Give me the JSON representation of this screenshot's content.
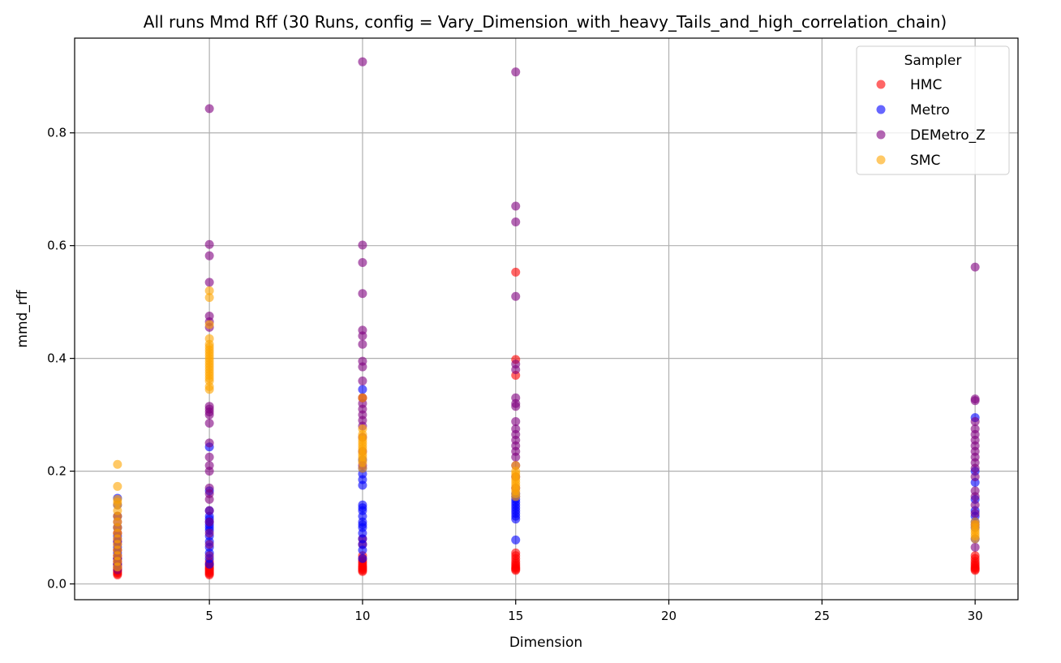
{
  "chart_data": {
    "type": "scatter",
    "title": "All runs Mmd Rff (30 Runs, config = Vary_Dimension_with_heavy_Tails_and_high_correlation_chain)",
    "xlabel": "Dimension",
    "ylabel": "mmd_rff",
    "xlim": [
      0.6,
      31.4
    ],
    "ylim": [
      -0.028,
      0.968
    ],
    "xticks": [
      5,
      10,
      15,
      20,
      25,
      30
    ],
    "yticks": [
      0.0,
      0.2,
      0.4,
      0.6,
      0.8
    ],
    "xtick_labels": [
      "5",
      "10",
      "15",
      "20",
      "25",
      "30"
    ],
    "ytick_labels": [
      "0.0",
      "0.2",
      "0.4",
      "0.6",
      "0.8"
    ],
    "grid": true,
    "legend": {
      "title": "Sampler",
      "position": "top-right"
    },
    "marker_alpha": 0.6,
    "series": [
      {
        "name": "HMC",
        "color": "#ff0000",
        "points": [
          [
            2,
            0.016
          ],
          [
            2,
            0.018
          ],
          [
            2,
            0.02
          ],
          [
            2,
            0.022
          ],
          [
            2,
            0.024
          ],
          [
            2,
            0.026
          ],
          [
            2,
            0.028
          ],
          [
            2,
            0.03
          ],
          [
            2,
            0.033
          ],
          [
            2,
            0.036
          ],
          [
            2,
            0.04
          ],
          [
            2,
            0.045
          ],
          [
            2,
            0.05
          ],
          [
            2,
            0.06
          ],
          [
            2,
            0.075
          ],
          [
            2,
            0.09
          ],
          [
            5,
            0.016
          ],
          [
            5,
            0.018
          ],
          [
            5,
            0.02
          ],
          [
            5,
            0.022
          ],
          [
            5,
            0.024
          ],
          [
            5,
            0.026
          ],
          [
            5,
            0.028
          ],
          [
            5,
            0.03
          ],
          [
            5,
            0.033
          ],
          [
            5,
            0.036
          ],
          [
            5,
            0.04
          ],
          [
            10,
            0.022
          ],
          [
            10,
            0.024
          ],
          [
            10,
            0.026
          ],
          [
            10,
            0.028
          ],
          [
            10,
            0.03
          ],
          [
            10,
            0.032
          ],
          [
            10,
            0.035
          ],
          [
            10,
            0.038
          ],
          [
            10,
            0.041
          ],
          [
            10,
            0.045
          ],
          [
            10,
            0.05
          ],
          [
            10,
            0.07
          ],
          [
            10,
            0.08
          ],
          [
            10,
            0.33
          ],
          [
            15,
            0.024
          ],
          [
            15,
            0.026
          ],
          [
            15,
            0.028
          ],
          [
            15,
            0.03
          ],
          [
            15,
            0.033
          ],
          [
            15,
            0.036
          ],
          [
            15,
            0.04
          ],
          [
            15,
            0.045
          ],
          [
            15,
            0.05
          ],
          [
            15,
            0.055
          ],
          [
            15,
            0.37
          ],
          [
            15,
            0.398
          ],
          [
            15,
            0.553
          ],
          [
            30,
            0.024
          ],
          [
            30,
            0.026
          ],
          [
            30,
            0.028
          ],
          [
            30,
            0.03
          ],
          [
            30,
            0.033
          ],
          [
            30,
            0.036
          ],
          [
            30,
            0.04
          ],
          [
            30,
            0.045
          ],
          [
            30,
            0.05
          ]
        ]
      },
      {
        "name": "Metro",
        "color": "#0000ff",
        "points": [
          [
            2,
            0.035
          ],
          [
            2,
            0.045
          ],
          [
            2,
            0.055
          ],
          [
            2,
            0.065
          ],
          [
            2,
            0.075
          ],
          [
            2,
            0.085
          ],
          [
            2,
            0.1
          ],
          [
            2,
            0.12
          ],
          [
            2,
            0.14
          ],
          [
            2,
            0.152
          ],
          [
            5,
            0.035
          ],
          [
            5,
            0.045
          ],
          [
            5,
            0.055
          ],
          [
            5,
            0.065
          ],
          [
            5,
            0.075
          ],
          [
            5,
            0.085
          ],
          [
            5,
            0.095
          ],
          [
            5,
            0.1
          ],
          [
            5,
            0.105
          ],
          [
            5,
            0.11
          ],
          [
            5,
            0.115
          ],
          [
            5,
            0.12
          ],
          [
            5,
            0.13
          ],
          [
            5,
            0.165
          ],
          [
            5,
            0.243
          ],
          [
            10,
            0.045
          ],
          [
            10,
            0.06
          ],
          [
            10,
            0.07
          ],
          [
            10,
            0.08
          ],
          [
            10,
            0.09
          ],
          [
            10,
            0.1
          ],
          [
            10,
            0.105
          ],
          [
            10,
            0.11
          ],
          [
            10,
            0.12
          ],
          [
            10,
            0.13
          ],
          [
            10,
            0.135
          ],
          [
            10,
            0.14
          ],
          [
            10,
            0.175
          ],
          [
            10,
            0.185
          ],
          [
            10,
            0.195
          ],
          [
            10,
            0.205
          ],
          [
            10,
            0.22
          ],
          [
            10,
            0.345
          ],
          [
            15,
            0.078
          ],
          [
            15,
            0.115
          ],
          [
            15,
            0.12
          ],
          [
            15,
            0.125
          ],
          [
            15,
            0.13
          ],
          [
            15,
            0.135
          ],
          [
            15,
            0.14
          ],
          [
            15,
            0.145
          ],
          [
            15,
            0.15
          ],
          [
            15,
            0.155
          ],
          [
            15,
            0.16
          ],
          [
            30,
            0.08
          ],
          [
            30,
            0.1
          ],
          [
            30,
            0.11
          ],
          [
            30,
            0.12
          ],
          [
            30,
            0.13
          ],
          [
            30,
            0.15
          ],
          [
            30,
            0.18
          ],
          [
            30,
            0.2
          ],
          [
            30,
            0.295
          ]
        ]
      },
      {
        "name": "DEMetro_Z",
        "color": "#800080",
        "points": [
          [
            2,
            0.025
          ],
          [
            2,
            0.03
          ],
          [
            2,
            0.035
          ],
          [
            2,
            0.04
          ],
          [
            2,
            0.045
          ],
          [
            2,
            0.05
          ],
          [
            2,
            0.06
          ],
          [
            2,
            0.07
          ],
          [
            2,
            0.08
          ],
          [
            2,
            0.09
          ],
          [
            2,
            0.1
          ],
          [
            2,
            0.11
          ],
          [
            2,
            0.12
          ],
          [
            5,
            0.05
          ],
          [
            5,
            0.07
          ],
          [
            5,
            0.09
          ],
          [
            5,
            0.11
          ],
          [
            5,
            0.13
          ],
          [
            5,
            0.15
          ],
          [
            5,
            0.16
          ],
          [
            5,
            0.17
          ],
          [
            5,
            0.2
          ],
          [
            5,
            0.21
          ],
          [
            5,
            0.225
          ],
          [
            5,
            0.25
          ],
          [
            5,
            0.285
          ],
          [
            5,
            0.3
          ],
          [
            5,
            0.305
          ],
          [
            5,
            0.31
          ],
          [
            5,
            0.315
          ],
          [
            5,
            0.455
          ],
          [
            5,
            0.465
          ],
          [
            5,
            0.475
          ],
          [
            5,
            0.535
          ],
          [
            5,
            0.582
          ],
          [
            5,
            0.602
          ],
          [
            5,
            0.843
          ],
          [
            10,
            0.21
          ],
          [
            10,
            0.235
          ],
          [
            10,
            0.26
          ],
          [
            10,
            0.28
          ],
          [
            10,
            0.29
          ],
          [
            10,
            0.3
          ],
          [
            10,
            0.31
          ],
          [
            10,
            0.32
          ],
          [
            10,
            0.33
          ],
          [
            10,
            0.36
          ],
          [
            10,
            0.385
          ],
          [
            10,
            0.395
          ],
          [
            10,
            0.425
          ],
          [
            10,
            0.44
          ],
          [
            10,
            0.45
          ],
          [
            10,
            0.515
          ],
          [
            10,
            0.57
          ],
          [
            10,
            0.601
          ],
          [
            10,
            0.926
          ],
          [
            15,
            0.17
          ],
          [
            15,
            0.19
          ],
          [
            15,
            0.21
          ],
          [
            15,
            0.225
          ],
          [
            15,
            0.235
          ],
          [
            15,
            0.245
          ],
          [
            15,
            0.255
          ],
          [
            15,
            0.265
          ],
          [
            15,
            0.275
          ],
          [
            15,
            0.288
          ],
          [
            15,
            0.315
          ],
          [
            15,
            0.32
          ],
          [
            15,
            0.33
          ],
          [
            15,
            0.38
          ],
          [
            15,
            0.39
          ],
          [
            15,
            0.51
          ],
          [
            15,
            0.642
          ],
          [
            15,
            0.67
          ],
          [
            15,
            0.908
          ],
          [
            30,
            0.065
          ],
          [
            30,
            0.105
          ],
          [
            30,
            0.125
          ],
          [
            30,
            0.14
          ],
          [
            30,
            0.155
          ],
          [
            30,
            0.165
          ],
          [
            30,
            0.19
          ],
          [
            30,
            0.205
          ],
          [
            30,
            0.215
          ],
          [
            30,
            0.225
          ],
          [
            30,
            0.235
          ],
          [
            30,
            0.245
          ],
          [
            30,
            0.255
          ],
          [
            30,
            0.265
          ],
          [
            30,
            0.275
          ],
          [
            30,
            0.288
          ],
          [
            30,
            0.325
          ],
          [
            30,
            0.328
          ],
          [
            30,
            0.562
          ]
        ]
      },
      {
        "name": "SMC",
        "color": "#ffa500",
        "points": [
          [
            2,
            0.03
          ],
          [
            2,
            0.04
          ],
          [
            2,
            0.05
          ],
          [
            2,
            0.06
          ],
          [
            2,
            0.07
          ],
          [
            2,
            0.08
          ],
          [
            2,
            0.09
          ],
          [
            2,
            0.1
          ],
          [
            2,
            0.11
          ],
          [
            2,
            0.12
          ],
          [
            2,
            0.13
          ],
          [
            2,
            0.14
          ],
          [
            2,
            0.145
          ],
          [
            2,
            0.15
          ],
          [
            2,
            0.173
          ],
          [
            2,
            0.212
          ],
          [
            5,
            0.345
          ],
          [
            5,
            0.35
          ],
          [
            5,
            0.36
          ],
          [
            5,
            0.365
          ],
          [
            5,
            0.37
          ],
          [
            5,
            0.375
          ],
          [
            5,
            0.38
          ],
          [
            5,
            0.385
          ],
          [
            5,
            0.39
          ],
          [
            5,
            0.395
          ],
          [
            5,
            0.4
          ],
          [
            5,
            0.405
          ],
          [
            5,
            0.41
          ],
          [
            5,
            0.415
          ],
          [
            5,
            0.42
          ],
          [
            5,
            0.425
          ],
          [
            5,
            0.435
          ],
          [
            5,
            0.46
          ],
          [
            5,
            0.508
          ],
          [
            5,
            0.52
          ],
          [
            10,
            0.205
          ],
          [
            10,
            0.215
          ],
          [
            10,
            0.22
          ],
          [
            10,
            0.225
          ],
          [
            10,
            0.23
          ],
          [
            10,
            0.235
          ],
          [
            10,
            0.24
          ],
          [
            10,
            0.245
          ],
          [
            10,
            0.25
          ],
          [
            10,
            0.255
          ],
          [
            10,
            0.26
          ],
          [
            10,
            0.265
          ],
          [
            10,
            0.275
          ],
          [
            10,
            0.33
          ],
          [
            15,
            0.155
          ],
          [
            15,
            0.16
          ],
          [
            15,
            0.165
          ],
          [
            15,
            0.17
          ],
          [
            15,
            0.175
          ],
          [
            15,
            0.18
          ],
          [
            15,
            0.185
          ],
          [
            15,
            0.19
          ],
          [
            15,
            0.195
          ],
          [
            15,
            0.2
          ],
          [
            15,
            0.21
          ],
          [
            30,
            0.08
          ],
          [
            30,
            0.085
          ],
          [
            30,
            0.09
          ],
          [
            30,
            0.095
          ],
          [
            30,
            0.1
          ],
          [
            30,
            0.105
          ],
          [
            30,
            0.11
          ]
        ]
      }
    ]
  }
}
